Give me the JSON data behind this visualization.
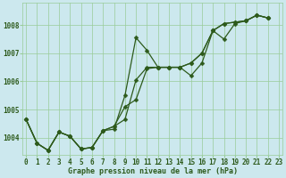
{
  "bg_color": "#cce8ee",
  "line_color": "#2d5a1b",
  "grid_color": "#99cc99",
  "xlabel": "Graphe pression niveau de la mer (hPa)",
  "tick_color": "#2d5a1b",
  "yticks": [
    1004,
    1005,
    1006,
    1007,
    1008
  ],
  "xticks": [
    0,
    1,
    2,
    3,
    4,
    5,
    6,
    7,
    8,
    9,
    10,
    11,
    12,
    13,
    14,
    15,
    16,
    17,
    18,
    19,
    20,
    21,
    22,
    23
  ],
  "xlim": [
    -0.3,
    23.3
  ],
  "ylim": [
    1003.4,
    1008.8
  ],
  "line1_x": [
    0,
    1,
    2,
    3,
    4,
    5,
    6,
    7,
    8,
    9,
    10,
    11,
    12,
    13,
    14,
    15,
    16,
    17,
    18,
    19,
    20,
    21,
    22
  ],
  "line1_y": [
    1004.65,
    1003.8,
    1003.55,
    1004.2,
    1004.05,
    1003.6,
    1003.65,
    1004.25,
    1004.3,
    1005.5,
    1007.55,
    1007.1,
    1006.5,
    1006.5,
    1006.5,
    1006.2,
    1006.65,
    1007.8,
    1007.5,
    1008.05,
    1008.15,
    1008.35,
    1008.25
  ],
  "line2_x": [
    0,
    1,
    2,
    3,
    4,
    5,
    6,
    7,
    8,
    9,
    10,
    11,
    12,
    13,
    14,
    15,
    16,
    17,
    18,
    19,
    20,
    21,
    22
  ],
  "line2_y": [
    1004.65,
    1003.8,
    1003.55,
    1004.2,
    1004.05,
    1003.6,
    1003.65,
    1004.25,
    1004.4,
    1004.65,
    1006.05,
    1006.5,
    1006.5,
    1006.5,
    1006.5,
    1006.65,
    1007.0,
    1007.8,
    1008.05,
    1008.1,
    1008.15,
    1008.35,
    1008.25
  ],
  "line3_x": [
    0,
    1,
    2,
    3,
    4,
    5,
    6,
    7,
    8,
    9,
    10,
    11,
    12,
    13,
    14,
    15,
    16,
    17,
    18,
    19,
    20,
    21,
    22
  ],
  "line3_y": [
    1004.65,
    1003.8,
    1003.55,
    1004.2,
    1004.05,
    1003.6,
    1003.65,
    1004.25,
    1004.4,
    1005.1,
    1005.35,
    1006.45,
    1006.5,
    1006.5,
    1006.5,
    1006.65,
    1007.0,
    1007.8,
    1008.05,
    1008.1,
    1008.15,
    1008.35,
    1008.25
  ],
  "marker": "D",
  "markersize": 2.5,
  "linewidth": 0.9,
  "tick_fontsize": 5.5,
  "xlabel_fontsize": 6.0
}
